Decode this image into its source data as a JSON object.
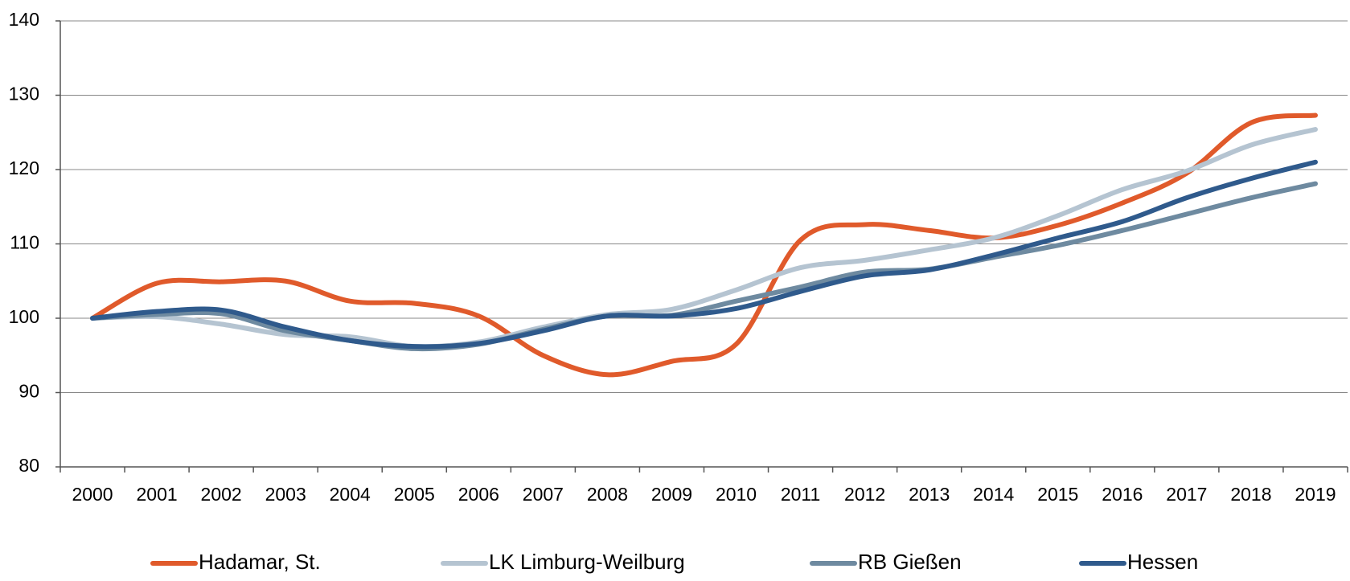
{
  "chart_data": {
    "type": "line",
    "categories": [
      "2000",
      "2001",
      "2002",
      "2003",
      "2004",
      "2005",
      "2006",
      "2007",
      "2008",
      "2009",
      "2010",
      "2011",
      "2012",
      "2013",
      "2014",
      "2015",
      "2016",
      "2017",
      "2018",
      "2019"
    ],
    "series": [
      {
        "name": "Hadamar, St.",
        "color": "#e05a2b",
        "values": [
          100,
          104.7,
          104.9,
          105,
          102.3,
          102,
          100.3,
          95,
          92.4,
          94.2,
          96.5,
          110.5,
          112.6,
          111.8,
          110.8,
          112.5,
          115.5,
          119.5,
          126.3,
          127.3
        ]
      },
      {
        "name": "LK Limburg-Weilburg",
        "color": "#b5c4d1",
        "values": [
          100,
          100.2,
          99.2,
          97.8,
          97.5,
          96.2,
          96.8,
          98.8,
          100.5,
          101.2,
          103.8,
          106.8,
          107.8,
          109.2,
          110.8,
          113.8,
          117.3,
          119.8,
          123.3,
          125.4
        ]
      },
      {
        "name": "RB Gießen",
        "color": "#6e8aa0",
        "values": [
          100,
          100.5,
          100.6,
          98.3,
          97,
          95.9,
          96.5,
          98.5,
          100.3,
          100.4,
          102.3,
          104.2,
          106.2,
          106.6,
          108.2,
          109.8,
          111.8,
          114,
          116.2,
          118.1
        ]
      },
      {
        "name": "Hessen",
        "color": "#2f5a8c",
        "values": [
          100,
          100.9,
          101.1,
          98.8,
          97,
          96.2,
          96.6,
          98.3,
          100.3,
          100.3,
          101.3,
          103.6,
          105.7,
          106.5,
          108.5,
          110.8,
          113,
          116.2,
          118.8,
          121
        ]
      }
    ],
    "ylim": [
      80,
      140
    ],
    "yticks": [
      80,
      90,
      100,
      110,
      120,
      130,
      140
    ],
    "grid": true,
    "legend": "bottom"
  }
}
